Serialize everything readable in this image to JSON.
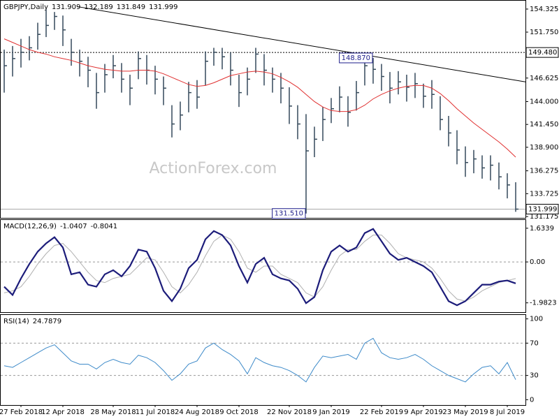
{
  "chart_data": [
    {
      "type": "ohlc",
      "title": "GBPJPY,Daily",
      "header_ohlc": [
        131.909,
        132.189,
        131.849
      ],
      "watermark": "ActionForex.com",
      "bar_color": "#34495a",
      "categories": [
        null,
        null,
        "27 Feb 2018",
        null,
        null,
        null,
        null,
        "12 Apr 2018",
        null,
        null,
        null,
        null,
        null,
        "28 May 2018",
        null,
        null,
        null,
        null,
        "11 Jul 2018",
        null,
        null,
        null,
        null,
        "24 Aug 2018",
        null,
        null,
        null,
        null,
        "9 Oct 2018",
        null,
        null,
        null,
        null,
        null,
        "22 Nov 2018",
        null,
        null,
        null,
        null,
        "9 Jan 2019",
        null,
        null,
        null,
        null,
        null,
        "22 Feb 2019",
        null,
        null,
        null,
        null,
        "9 Apr 2019",
        null,
        null,
        null,
        null,
        "23 May 2019",
        null,
        null,
        null,
        null,
        "8 Jul 2019",
        null
      ],
      "high": [
        149.8,
        150.2,
        151.0,
        151.3,
        152.8,
        154.3,
        154.0,
        153.6,
        151.0,
        149.8,
        149.0,
        147.2,
        148.2,
        149.2,
        148.3,
        147.0,
        149.6,
        149.2,
        148.0,
        146.8,
        143.6,
        144.0,
        146.2,
        146.4,
        149.6,
        150.0,
        150.0,
        149.5,
        147.0,
        147.8,
        150.0,
        149.3,
        147.8,
        147.2,
        145.6,
        143.6,
        142.6,
        141.2,
        143.4,
        144.4,
        145.7,
        144.6,
        146.3,
        148.5,
        148.87,
        148.2,
        147.3,
        147.4,
        147.0,
        147.2,
        146.0,
        146.4,
        144.6,
        142.4,
        140.8,
        139.0,
        138.6,
        138.0,
        138.0,
        137.2,
        136.0,
        135.0
      ],
      "low": [
        145.0,
        146.8,
        147.8,
        148.6,
        149.8,
        151.2,
        152.0,
        150.2,
        148.0,
        146.8,
        145.6,
        143.2,
        145.0,
        146.6,
        145.0,
        143.6,
        146.5,
        145.9,
        144.8,
        143.6,
        140.0,
        140.8,
        142.8,
        143.2,
        145.8,
        148.0,
        147.6,
        145.8,
        143.4,
        144.7,
        147.2,
        145.8,
        145.0,
        143.8,
        141.5,
        139.8,
        131.51,
        137.8,
        139.6,
        141.6,
        142.8,
        141.2,
        143.0,
        145.8,
        146.0,
        145.2,
        143.8,
        144.8,
        144.0,
        144.4,
        143.3,
        143.2,
        140.8,
        139.0,
        137.0,
        135.6,
        136.0,
        135.4,
        135.2,
        134.2,
        133.2,
        131.7
      ],
      "close": [
        148.0,
        148.8,
        149.5,
        150.0,
        151.5,
        152.5,
        153.5,
        152.0,
        149.5,
        148.5,
        147.5,
        145.0,
        147.0,
        148.0,
        146.5,
        145.5,
        148.8,
        147.5,
        146.5,
        145.5,
        141.5,
        142.5,
        145.0,
        144.5,
        148.5,
        149.5,
        149.0,
        147.5,
        145.0,
        146.5,
        149.3,
        147.5,
        146.5,
        145.5,
        143.5,
        141.5,
        138.5,
        139.8,
        142.0,
        143.2,
        144.5,
        142.8,
        145.0,
        148.0,
        147.6,
        146.8,
        145.5,
        146.2,
        145.6,
        146.0,
        144.6,
        144.8,
        142.0,
        140.5,
        138.6,
        137.2,
        137.6,
        136.6,
        136.9,
        135.6,
        134.7,
        131.999
      ],
      "ma": {
        "color": "#e03030",
        "values": [
          151.0,
          150.6,
          150.2,
          149.8,
          149.5,
          149.3,
          149.0,
          148.8,
          148.6,
          148.3,
          148.0,
          147.8,
          147.6,
          147.5,
          147.4,
          147.4,
          147.5,
          147.5,
          147.4,
          147.1,
          146.7,
          146.3,
          145.9,
          145.7,
          145.8,
          146.1,
          146.5,
          146.9,
          147.1,
          147.3,
          147.4,
          147.3,
          147.1,
          146.7,
          146.2,
          145.6,
          144.8,
          144.0,
          143.4,
          143.0,
          142.9,
          142.9,
          143.1,
          143.6,
          144.3,
          144.8,
          145.2,
          145.5,
          145.7,
          145.8,
          145.8,
          145.5,
          144.9,
          144.1,
          143.2,
          142.4,
          141.6,
          140.9,
          140.2,
          139.5,
          138.7,
          137.8
        ]
      },
      "trendline": {
        "start": [
          8.7,
          154.6
        ],
        "end": [
          62.2,
          146.2
        ]
      },
      "ylim": [
        131.1,
        155.18
      ],
      "yticks": [
        154.325,
        {
          "value": 151.75,
          "label": "151.750"
        },
        146.625,
        {
          "value": 144,
          "label": "144.000"
        },
        {
          "value": 141.45,
          "label": "141.450"
        },
        {
          "value": 138.9,
          "label": "138.900"
        },
        136.275,
        133.725,
        131.175
      ],
      "levels": [
        {
          "value": 149.48,
          "label": "149.480"
        }
      ],
      "annotations": [
        {
          "value": 148.87,
          "label": "148.870"
        },
        {
          "value": 131.51,
          "label": "131.510"
        }
      ],
      "annotation_color": "#1c1c8a"
    },
    {
      "type": "line",
      "title": "MACD(12,26,9)",
      "series": [
        {
          "color": "#1c1c7a",
          "values": [
            -1.2,
            -1.6,
            -0.8,
            -0.1,
            0.5,
            0.9,
            1.2,
            0.7,
            -0.6,
            -0.5,
            -1.1,
            -1.2,
            -0.6,
            -0.4,
            -0.7,
            -0.2,
            0.6,
            0.5,
            -0.3,
            -1.4,
            -1.9,
            -1.3,
            -0.3,
            0.1,
            1.1,
            1.5,
            1.3,
            0.8,
            -0.2,
            -1.0,
            -0.1,
            0.2,
            -0.6,
            -0.8,
            -0.9,
            -1.3,
            -2.0,
            -1.7,
            -0.4,
            0.5,
            0.8,
            0.5,
            0.7,
            1.4,
            1.6,
            1.0,
            0.4,
            0.1,
            0.2,
            0.0,
            -0.2,
            -0.5,
            -1.2,
            -1.9,
            -2.1,
            -1.9,
            -1.5,
            -1.1,
            -1.1,
            -0.95,
            -0.9,
            -1.0407
          ]
        },
        {
          "color": "#b0b0b0",
          "values": [
            -1.5,
            -1.4,
            -1.2,
            -0.7,
            -0.1,
            0.4,
            0.8,
            0.9,
            0.5,
            0.0,
            -0.5,
            -0.9,
            -1.0,
            -0.8,
            -0.7,
            -0.6,
            -0.2,
            0.2,
            0.1,
            -0.5,
            -1.2,
            -1.5,
            -1.1,
            -0.5,
            0.3,
            1.0,
            1.3,
            1.1,
            0.5,
            -0.3,
            -0.5,
            -0.2,
            -0.2,
            -0.6,
            -0.8,
            -1.0,
            -1.5,
            -1.7,
            -1.2,
            -0.4,
            0.3,
            0.6,
            0.6,
            1.0,
            1.3,
            1.3,
            0.9,
            0.4,
            0.2,
            0.1,
            0.0,
            -0.3,
            -0.8,
            -1.4,
            -1.8,
            -1.9,
            -1.7,
            -1.4,
            -1.2,
            -1.0,
            -0.9,
            -0.8041
          ]
        }
      ],
      "ylim": [
        -2.4,
        2.0
      ],
      "yticks": [
        1.6339,
        {
          "value": 0,
          "label": "0.00"
        },
        -1.9823
      ],
      "levels": [
        0
      ]
    },
    {
      "type": "line",
      "title": "RSI(14)",
      "series": [
        {
          "color": "#3d8ac9",
          "values": [
            42,
            40,
            46,
            52,
            58,
            64,
            68,
            58,
            48,
            44,
            44,
            38,
            46,
            50,
            46,
            44,
            55,
            52,
            46,
            36,
            24,
            32,
            44,
            48,
            64,
            70,
            62,
            56,
            48,
            32,
            52,
            46,
            42,
            40,
            36,
            30,
            22,
            40,
            54,
            52,
            54,
            56,
            50,
            70,
            76,
            58,
            52,
            50,
            52,
            56,
            50,
            42,
            36,
            30,
            26,
            22,
            32,
            40,
            42,
            32,
            46,
            24.7879
          ]
        }
      ],
      "ylim": [
        -4,
        104
      ],
      "yticks": [
        100,
        70,
        30,
        0
      ],
      "levels": [
        70,
        30
      ]
    }
  ]
}
